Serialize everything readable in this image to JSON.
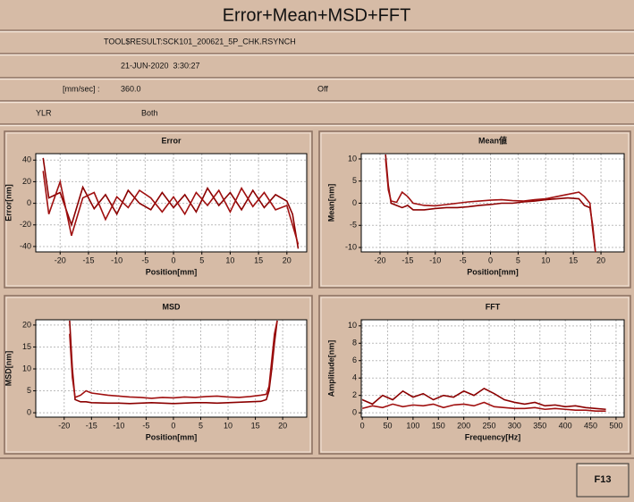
{
  "title": "Error+Mean+MSD+FFT",
  "info": {
    "file": "TOOL$RESULT:SCK101_200621_5P_CHK.RSYNCH",
    "date": "21-JUN-2020  3:30:27",
    "speed_label": "[mm/sec] :",
    "speed": "360.0",
    "mode": "Off",
    "axis": "YLR",
    "direction": "Both"
  },
  "button": "F13",
  "chart_data": [
    {
      "type": "line",
      "title": "Error",
      "x_label": "Position[mm]",
      "y_label": "Error[nm]",
      "grid": true,
      "xlim": [
        -24.3,
        23.5
      ],
      "ylim": [
        -45,
        46
      ],
      "xticks": [
        -20,
        -15,
        -10,
        -5,
        0,
        5,
        10,
        15,
        20
      ],
      "yticks": [
        -40,
        -20,
        0,
        20,
        40
      ],
      "x": [
        -23,
        -22,
        -20,
        -18,
        -16,
        -14,
        -12,
        -10,
        -8,
        -6,
        -4,
        -2,
        0,
        2,
        4,
        6,
        8,
        10,
        12,
        14,
        16,
        18,
        20,
        21,
        22
      ],
      "series": [
        {
          "color": "#8b0000",
          "values": [
            42,
            5,
            10,
            -20,
            15,
            -5,
            8,
            -10,
            12,
            0,
            -6,
            10,
            -4,
            8,
            -8,
            14,
            -2,
            10,
            -6,
            12,
            -4,
            8,
            2,
            -10,
            -42
          ]
        },
        {
          "color": "#a01010",
          "values": [
            30,
            -10,
            20,
            -30,
            5,
            10,
            -15,
            6,
            -4,
            12,
            5,
            -8,
            6,
            -10,
            10,
            -2,
            12,
            -8,
            14,
            -3,
            10,
            -6,
            -2,
            -20,
            -38
          ]
        }
      ]
    },
    {
      "type": "line",
      "title": "Mean値",
      "x_label": "Position[mm]",
      "y_label": "Mean[nm]",
      "grid": true,
      "xlim": [
        -23.4,
        24.2
      ],
      "ylim": [
        -11,
        11.2
      ],
      "xticks": [
        -20,
        -15,
        -10,
        -5,
        0,
        5,
        10,
        15,
        20
      ],
      "yticks": [
        -10,
        -5,
        0,
        5,
        10
      ],
      "x": [
        -19,
        -18.5,
        -18,
        -17,
        -16,
        -15,
        -14,
        -12,
        -10,
        -8,
        -6,
        -4,
        -2,
        0,
        2,
        4,
        6,
        8,
        10,
        12,
        14,
        16,
        17,
        18,
        18.5,
        19
      ],
      "series": [
        {
          "color": "#8b0000",
          "values": [
            11,
            4,
            0,
            -0.5,
            -1,
            -0.5,
            -1.5,
            -1.5,
            -1.2,
            -1,
            -1,
            -0.8,
            -0.5,
            -0.3,
            0,
            0,
            0.3,
            0.5,
            0.8,
            1,
            1.2,
            1,
            -0.5,
            -1,
            -5,
            -11
          ]
        },
        {
          "color": "#a01010",
          "values": [
            10,
            3,
            0.5,
            0.2,
            2.5,
            1.5,
            0,
            -0.5,
            -0.6,
            -0.3,
            0,
            0.3,
            0.5,
            0.7,
            0.8,
            0.6,
            0.5,
            0.8,
            1,
            1.5,
            2,
            2.5,
            1.5,
            0,
            -6,
            -11
          ]
        }
      ]
    },
    {
      "type": "line",
      "title": "MSD",
      "x_label": "Position[mm]",
      "y_label": "MSD[nm]",
      "grid": true,
      "xlim": [
        -25.2,
        24.4
      ],
      "ylim": [
        -1,
        21.2
      ],
      "xticks": [
        -20,
        -15,
        -10,
        -5,
        0,
        5,
        10,
        15,
        20
      ],
      "yticks": [
        0,
        5,
        10,
        15,
        20
      ],
      "x": [
        -19,
        -18.5,
        -18,
        -17,
        -16,
        -15,
        -12,
        -10,
        -8,
        -6,
        -4,
        -2,
        0,
        2,
        4,
        6,
        8,
        10,
        12,
        14,
        16,
        17,
        17.5,
        18,
        18.5,
        19
      ],
      "series": [
        {
          "color": "#8b0000",
          "values": [
            21,
            10,
            3,
            2.5,
            2.5,
            2.3,
            2.2,
            2.2,
            2.1,
            2.2,
            2.3,
            2.2,
            2.1,
            2.2,
            2.3,
            2.3,
            2.2,
            2.3,
            2.4,
            2.5,
            2.6,
            3,
            5,
            10,
            16,
            21
          ]
        },
        {
          "color": "#a01010",
          "values": [
            18,
            8,
            3.5,
            4,
            5,
            4.5,
            4,
            3.8,
            3.6,
            3.5,
            3.3,
            3.5,
            3.4,
            3.6,
            3.5,
            3.7,
            3.8,
            3.6,
            3.5,
            3.7,
            4,
            4.2,
            6,
            12,
            18,
            21
          ]
        }
      ]
    },
    {
      "type": "line",
      "title": "FFT",
      "x_label": "Frequency[Hz]",
      "y_label": "Amplitude[nm]",
      "grid": true,
      "xlim": [
        -2,
        516
      ],
      "ylim": [
        -0.5,
        10.7
      ],
      "xticks": [
        0,
        50,
        100,
        150,
        200,
        250,
        300,
        350,
        400,
        450,
        500
      ],
      "yticks": [
        0,
        2,
        4,
        6,
        8,
        10
      ],
      "x": [
        0,
        20,
        40,
        60,
        80,
        100,
        120,
        140,
        160,
        180,
        200,
        220,
        240,
        260,
        280,
        300,
        320,
        340,
        360,
        380,
        400,
        420,
        440,
        460,
        480
      ],
      "series": [
        {
          "color": "#8b0000",
          "values": [
            1.5,
            1,
            2,
            1.5,
            2.5,
            1.8,
            2.2,
            1.5,
            2,
            1.8,
            2.5,
            2,
            2.8,
            2.2,
            1.5,
            1.2,
            1,
            1.2,
            0.8,
            0.9,
            0.7,
            0.8,
            0.6,
            0.5,
            0.4
          ]
        },
        {
          "color": "#a01010",
          "values": [
            0.5,
            0.8,
            0.6,
            1,
            0.7,
            0.9,
            0.8,
            1,
            0.6,
            0.9,
            1,
            0.8,
            1.2,
            0.7,
            0.6,
            0.5,
            0.5,
            0.6,
            0.4,
            0.5,
            0.4,
            0.3,
            0.3,
            0.2,
            0.2
          ]
        }
      ]
    }
  ]
}
